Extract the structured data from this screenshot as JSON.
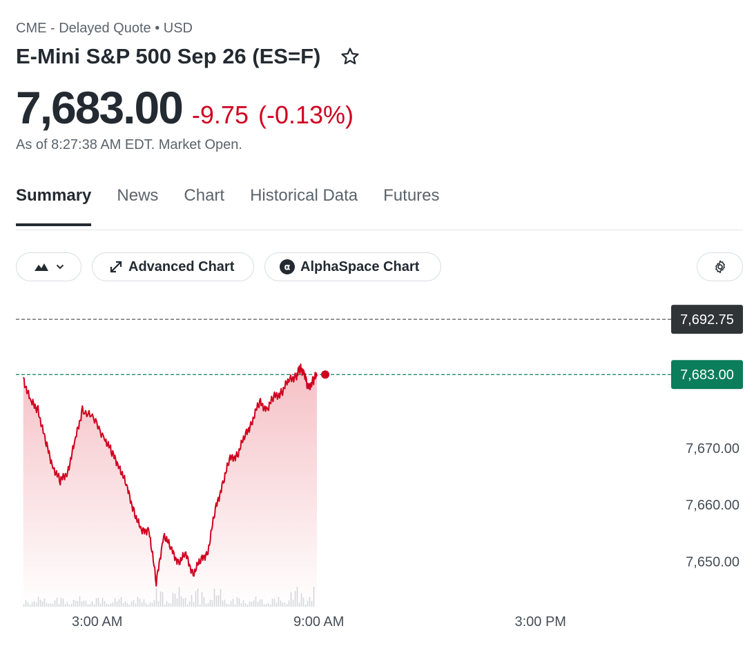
{
  "header": {
    "source": "CME - Delayed Quote • USD",
    "title": "E-Mini S&P 500 Sep 26 (ES=F)",
    "price": "7,683.00",
    "change": "-9.75",
    "change_pct": "(-0.13%)",
    "as_of": "As of 8:27:38 AM EDT. Market Open."
  },
  "tabs": [
    {
      "label": "Summary",
      "active": true
    },
    {
      "label": "News",
      "active": false
    },
    {
      "label": "Chart",
      "active": false
    },
    {
      "label": "Historical Data",
      "active": false
    },
    {
      "label": "Futures",
      "active": false
    }
  ],
  "toolbar": {
    "chart_type_icon": "mountain-icon",
    "advanced_chart_label": "Advanced Chart",
    "alphaspace_chart_label": "AlphaSpace Chart",
    "settings_icon": "gear-icon"
  },
  "colors": {
    "down": "#d0001f",
    "current_price_tag": "#0a7d5a",
    "prev_close_tag": "#2f3437"
  },
  "chart_data": {
    "type": "area",
    "x_ticks": [
      "3:00 AM",
      "9:00 AM",
      "3:00 PM"
    ],
    "y_ticks": [
      "7,650.00",
      "7,660.00",
      "7,670.00"
    ],
    "ylim": [
      7642,
      7698
    ],
    "prev_close": {
      "value": 7692.75,
      "label": "7,692.75"
    },
    "current": {
      "value": 7683.0,
      "label": "7,683.00"
    },
    "x_unit": "hours since midnight",
    "xlim": [
      0.8,
      18.5
    ],
    "series": [
      {
        "x": [
          1.0,
          1.2,
          1.4,
          1.6,
          1.8,
          2.0,
          2.2,
          2.4,
          2.6,
          2.9,
          3.2,
          3.4,
          3.6,
          3.8,
          4.0,
          4.2,
          4.4,
          4.6,
          4.8,
          5.0,
          5.2,
          5.4,
          5.6,
          5.8,
          6.0,
          6.2,
          6.4,
          6.6,
          6.8,
          7.0,
          7.2,
          7.4,
          7.6,
          7.8,
          8.0,
          8.2,
          8.4,
          8.5,
          8.6,
          8.7,
          8.85,
          8.95
        ],
        "values": [
          7682.5,
          7678,
          7677,
          7671,
          7667,
          7664,
          7666,
          7671,
          7677,
          7675,
          7672,
          7669,
          7667,
          7663,
          7659,
          7655,
          7656,
          7646,
          7655,
          7652,
          7650,
          7651,
          7648,
          7650,
          7652,
          7659,
          7664,
          7668,
          7669,
          7672,
          7675,
          7678,
          7677,
          7679,
          7680,
          7682,
          7683,
          7684,
          7683.5,
          7680.5,
          7682,
          7683.0
        ]
      }
    ]
  }
}
